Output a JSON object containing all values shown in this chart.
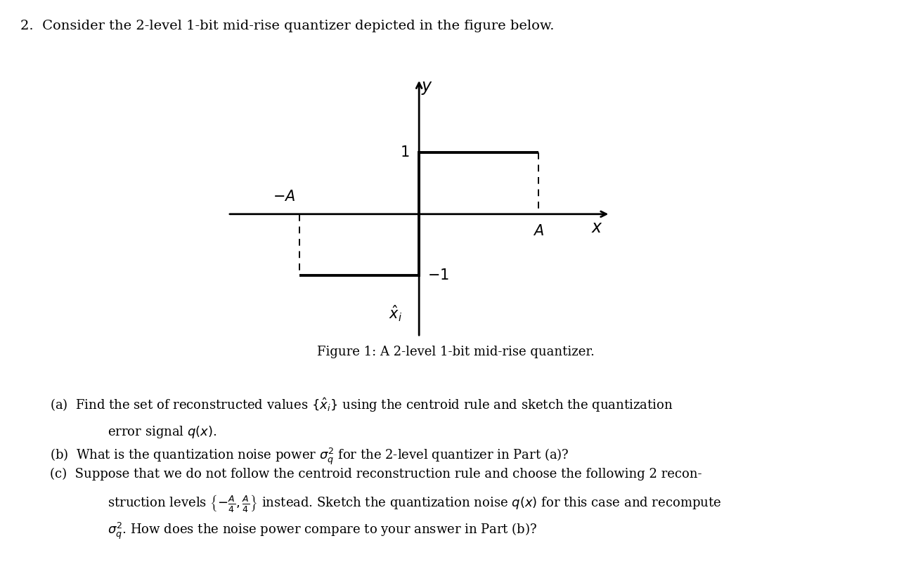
{
  "title_text": "2.  Consider the 2-level 1-bit mid-rise quantizer depicted in the figure below.",
  "figure_caption": "Figure 1: A 2-level 1-bit mid-rise quantizer.",
  "background_color": "#ffffff",
  "text_color": "#000000",
  "plot_bg_color": "#ffffff",
  "axis_arrow_color": "#000000",
  "step_color": "#000000",
  "dashed_color": "#000000",
  "A_val": 1.5,
  "y1_val": 1.0,
  "xlim": [
    -2.4,
    2.4
  ],
  "ylim": [
    -2.0,
    2.2
  ],
  "title_fontsize": 14,
  "caption_fontsize": 13,
  "body_fontsize": 13
}
